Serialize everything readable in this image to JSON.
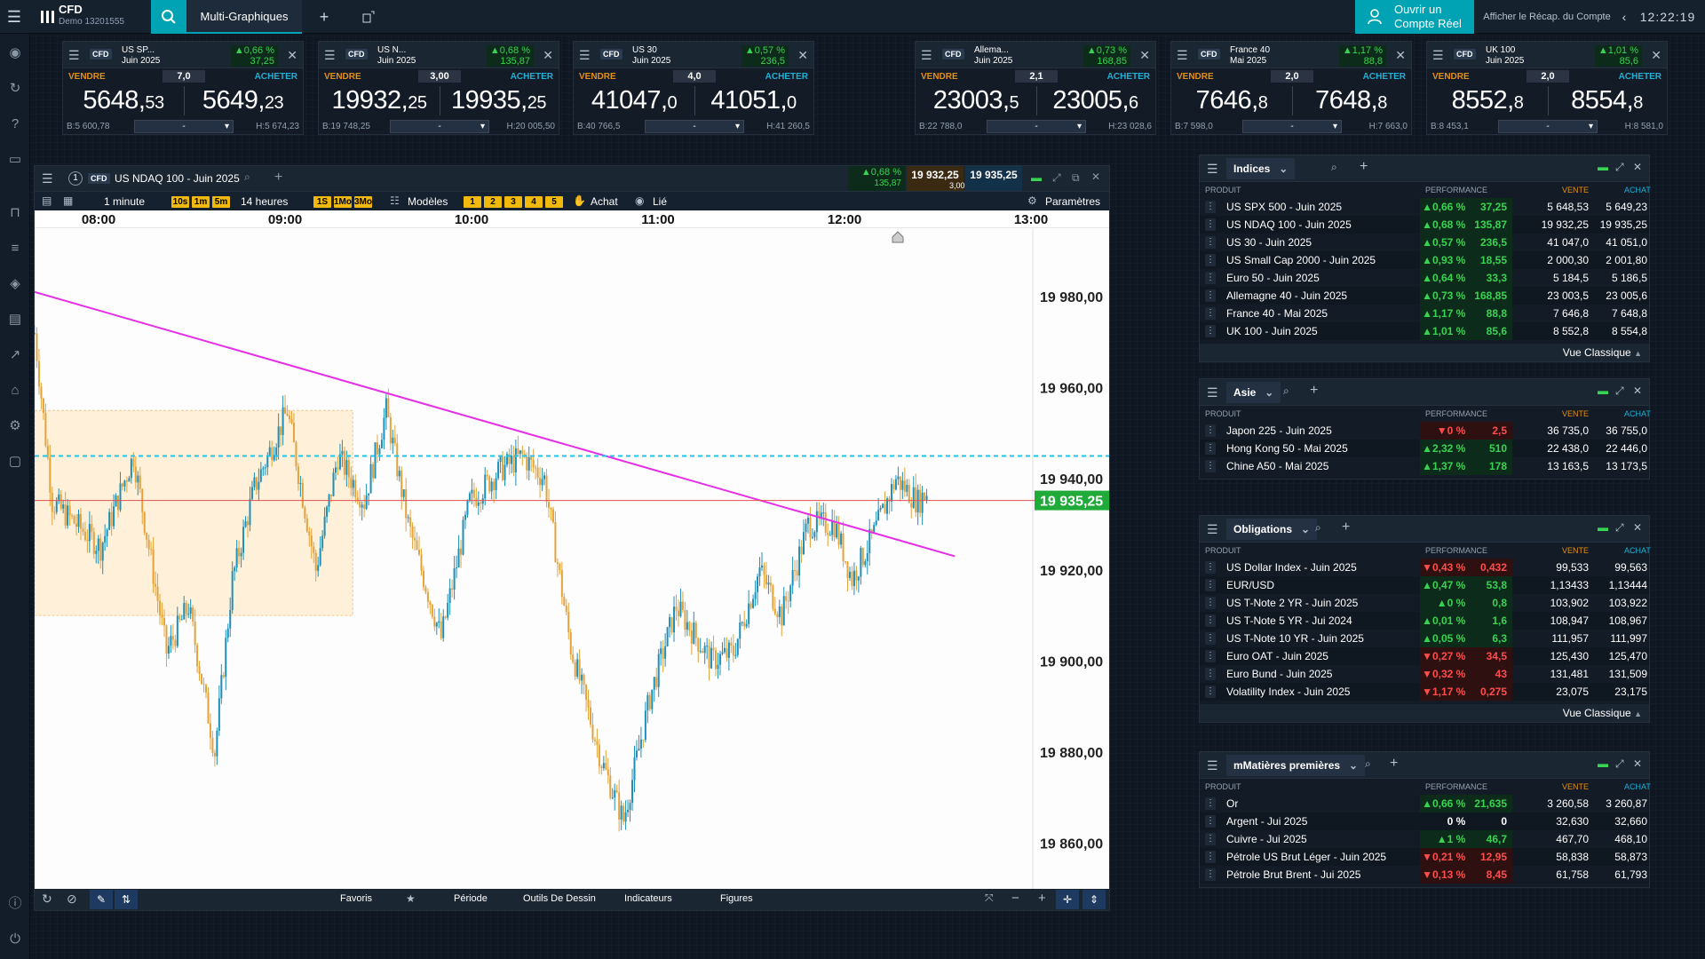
{
  "topbar": {
    "account_type": "CFD",
    "account_id": "Demo 13201555",
    "tab_label": "Multi-Graphiques",
    "open_account": "Ouvrir un",
    "open_account_2": "Compte Réel",
    "recap": "Afficher le Récap. du Compte",
    "clock": "12:22:19"
  },
  "tickets": [
    {
      "name": "US SP...",
      "sub": "Juin 2025",
      "perf": "0,66 %",
      "perf_pts": "37,25",
      "sell_label": "VENDRE",
      "buy_label": "ACHETER",
      "spread": "7,0",
      "sell_big": "5648,",
      "sell_small": "53",
      "buy_big": "5649,",
      "buy_small": "23",
      "low": "B:5 600,78",
      "high": "H:5 674,23",
      "qty": "-"
    },
    {
      "name": "US N...",
      "sub": "Juin 2025",
      "perf": "0,68 %",
      "perf_pts": "135,87",
      "sell_label": "VENDRE",
      "buy_label": "ACHETER",
      "spread": "3,00",
      "sell_big": "19932,",
      "sell_small": "25",
      "buy_big": "19935,",
      "buy_small": "25",
      "low": "B:19 748,25",
      "high": "H:20 005,50",
      "qty": "-"
    },
    {
      "name": "US 30",
      "sub": "Juin 2025",
      "perf": "0,57 %",
      "perf_pts": "236,5",
      "sell_label": "VENDRE",
      "buy_label": "ACHETER",
      "spread": "4,0",
      "sell_big": "41047,",
      "sell_small": "0",
      "buy_big": "41051,",
      "buy_small": "0",
      "low": "B:40 766,5",
      "high": "H:41 260,5",
      "qty": "-"
    },
    {
      "name": "Allema...",
      "sub": "Juin 2025",
      "perf": "0,73 %",
      "perf_pts": "168,85",
      "sell_label": "VENDRE",
      "buy_label": "ACHETER",
      "spread": "2,1",
      "sell_big": "23003,",
      "sell_small": "5",
      "buy_big": "23005,",
      "buy_small": "6",
      "low": "B:22 788,0",
      "high": "H:23 028,6",
      "qty": "-"
    },
    {
      "name": "France 40",
      "sub": "Mai 2025",
      "perf": "1,17 %",
      "perf_pts": "88,8",
      "sell_label": "VENDRE",
      "buy_label": "ACHETER",
      "spread": "2,0",
      "sell_big": "7646,",
      "sell_small": "8",
      "buy_big": "7648,",
      "buy_small": "8",
      "low": "B:7 598,0",
      "high": "H:7 663,0",
      "qty": "-"
    },
    {
      "name": "UK 100",
      "sub": "Juin 2025",
      "perf": "1,01 %",
      "perf_pts": "85,6",
      "sell_label": "VENDRE",
      "buy_label": "ACHETER",
      "spread": "2,0",
      "sell_big": "8552,",
      "sell_small": "8",
      "buy_big": "8554,",
      "buy_small": "8",
      "low": "B:8 453,1",
      "high": "H:8 581,0",
      "qty": "-"
    }
  ],
  "chart": {
    "cfd": "CFD",
    "title": "US NDAQ 100 - Juin 2025",
    "perf": "0,68 %",
    "perf_pts": "135,87",
    "sell": "19 932,25",
    "buy": "19 935,25",
    "spread": "3,00",
    "interval": "1 minute",
    "period": "14 heures",
    "models": "Modèles",
    "achat": "Achat",
    "lie": "Lié",
    "params": "Paramètres",
    "intervals": [
      "10s",
      "1m",
      "5m"
    ],
    "periods": [
      "1S",
      "1Mo",
      "3Mo"
    ],
    "numbers": [
      "1",
      "2",
      "3",
      "4",
      "5"
    ],
    "times": [
      "08:00",
      "09:00",
      "10:00",
      "11:00",
      "12:00",
      "13:00"
    ],
    "prices": [
      "19 980,00",
      "19 960,00",
      "19 940,00",
      "19 920,00",
      "19 900,00",
      "19 880,00",
      "19 860,00"
    ],
    "current_price": "19 935,25",
    "bottom": {
      "fav": "Favoris",
      "period": "Période",
      "tools": "Outils De Dessin",
      "indicators": "Indicateurs",
      "figures": "Figures"
    }
  },
  "chart_data": {
    "type": "candlestick",
    "ylim": [
      19850,
      19995
    ],
    "x_range": [
      "07:40",
      "13:00"
    ],
    "current_price": 19935.25,
    "resistance_level": 19945,
    "trendline": [
      {
        "t": "07:40",
        "p": 19981
      },
      {
        "t": "12:35",
        "p": 19923
      }
    ],
    "highlight_box": {
      "t0": "07:40",
      "t1": "09:22",
      "p0": 19910,
      "p1": 19955
    }
  },
  "panels": [
    {
      "title": "Indices",
      "col_product": "PRODUIT",
      "col_perf": "PERFORMANCE",
      "col_sell": "VENTE",
      "col_buy": "ACHAT",
      "footer": "Vue Classique",
      "rows": [
        {
          "name": "US SPX 500 - Juin 2025",
          "pct": "0,66 %",
          "pts": "37,25",
          "dir": "up",
          "sell": "5 648,53",
          "buy": "5 649,23"
        },
        {
          "name": "US NDAQ 100 - Juin 2025",
          "pct": "0,68 %",
          "pts": "135,87",
          "dir": "up",
          "sell": "19 932,25",
          "buy": "19 935,25"
        },
        {
          "name": "US 30 - Juin 2025",
          "pct": "0,57 %",
          "pts": "236,5",
          "dir": "up",
          "sell": "41 047,0",
          "buy": "41 051,0"
        },
        {
          "name": "US Small Cap 2000 - Juin 2025",
          "pct": "0,93 %",
          "pts": "18,55",
          "dir": "up",
          "sell": "2 000,30",
          "buy": "2 001,80"
        },
        {
          "name": "Euro 50 - Juin 2025",
          "pct": "0,64 %",
          "pts": "33,3",
          "dir": "up",
          "sell": "5 184,5",
          "buy": "5 186,5"
        },
        {
          "name": "Allemagne 40 - Juin 2025",
          "pct": "0,73 %",
          "pts": "168,85",
          "dir": "up",
          "sell": "23 003,5",
          "buy": "23 005,6"
        },
        {
          "name": "France 40 - Mai 2025",
          "pct": "1,17 %",
          "pts": "88,8",
          "dir": "up",
          "sell": "7 646,8",
          "buy": "7 648,8"
        },
        {
          "name": "UK 100 - Juin 2025",
          "pct": "1,01 %",
          "pts": "85,6",
          "dir": "up",
          "sell": "8 552,8",
          "buy": "8 554,8"
        }
      ]
    },
    {
      "title": "Asie",
      "col_product": "PRODUIT",
      "col_perf": "PERFORMANCE",
      "col_sell": "VENTE",
      "col_buy": "ACHAT",
      "footer": "",
      "rows": [
        {
          "name": "Japon 225 - Juin 2025",
          "pct": "0 %",
          "pts": "2,5",
          "dir": "dn",
          "sell": "36 735,0",
          "buy": "36 755,0"
        },
        {
          "name": "Hong Kong 50 - Mai 2025",
          "pct": "2,32 %",
          "pts": "510",
          "dir": "up",
          "sell": "22 438,0",
          "buy": "22 446,0"
        },
        {
          "name": "Chine A50 - Mai 2025",
          "pct": "1,37 %",
          "pts": "178",
          "dir": "up",
          "sell": "13 163,5",
          "buy": "13 173,5"
        }
      ]
    },
    {
      "title": "Obligations",
      "col_product": "PRODUIT",
      "col_perf": "PERFORMANCE",
      "col_sell": "VENTE",
      "col_buy": "ACHAT",
      "footer": "Vue Classique",
      "rows": [
        {
          "name": "US Dollar Index - Juin 2025",
          "pct": "0,43 %",
          "pts": "0,432",
          "dir": "dn",
          "sell": "99,533",
          "buy": "99,563"
        },
        {
          "name": "EUR/USD",
          "pct": "0,47 %",
          "pts": "53,8",
          "dir": "up",
          "sell": "1,13433",
          "buy": "1,13444"
        },
        {
          "name": "US T-Note 2 YR - Juin 2025",
          "pct": "0 %",
          "pts": "0,8",
          "dir": "up",
          "sell": "103,902",
          "buy": "103,922"
        },
        {
          "name": "US T-Note 5 YR - Jui 2024",
          "pct": "0,01 %",
          "pts": "1,6",
          "dir": "up",
          "sell": "108,947",
          "buy": "108,967"
        },
        {
          "name": "US T-Note 10 YR - Juin 2025",
          "pct": "0,05 %",
          "pts": "6,3",
          "dir": "up",
          "sell": "111,957",
          "buy": "111,997"
        },
        {
          "name": "Euro OAT - Juin 2025",
          "pct": "0,27 %",
          "pts": "34,5",
          "dir": "dn",
          "sell": "125,430",
          "buy": "125,470"
        },
        {
          "name": "Euro Bund - Juin 2025",
          "pct": "0,32 %",
          "pts": "43",
          "dir": "dn",
          "sell": "131,481",
          "buy": "131,509"
        },
        {
          "name": "Volatility Index - Juin 2025",
          "pct": "1,17 %",
          "pts": "0,275",
          "dir": "dn",
          "sell": "23,075",
          "buy": "23,175"
        }
      ]
    },
    {
      "title": "mMatières premières",
      "col_product": "PRODUIT",
      "col_perf": "PERFORMANCE",
      "col_sell": "VENTE",
      "col_buy": "ACHAT",
      "footer": "",
      "rows": [
        {
          "name": "Or",
          "pct": "0,66 %",
          "pts": "21,635",
          "dir": "up",
          "sell": "3 260,58",
          "buy": "3 260,87"
        },
        {
          "name": "Argent - Jui 2025",
          "pct": "0 %",
          "pts": "0",
          "dir": "nu",
          "sell": "32,630",
          "buy": "32,660"
        },
        {
          "name": "Cuivre - Jui 2025",
          "pct": "1 %",
          "pts": "46,7",
          "dir": "up",
          "sell": "467,70",
          "buy": "468,10"
        },
        {
          "name": "Pétrole US Brut Léger - Juin 2025",
          "pct": "0,21 %",
          "pts": "12,95",
          "dir": "dn",
          "sell": "58,838",
          "buy": "58,873"
        },
        {
          "name": "Pétrole Brut Brent - Jui 2025",
          "pct": "0,13 %",
          "pts": "8,45",
          "dir": "dn",
          "sell": "61,758",
          "buy": "61,793"
        }
      ]
    }
  ]
}
